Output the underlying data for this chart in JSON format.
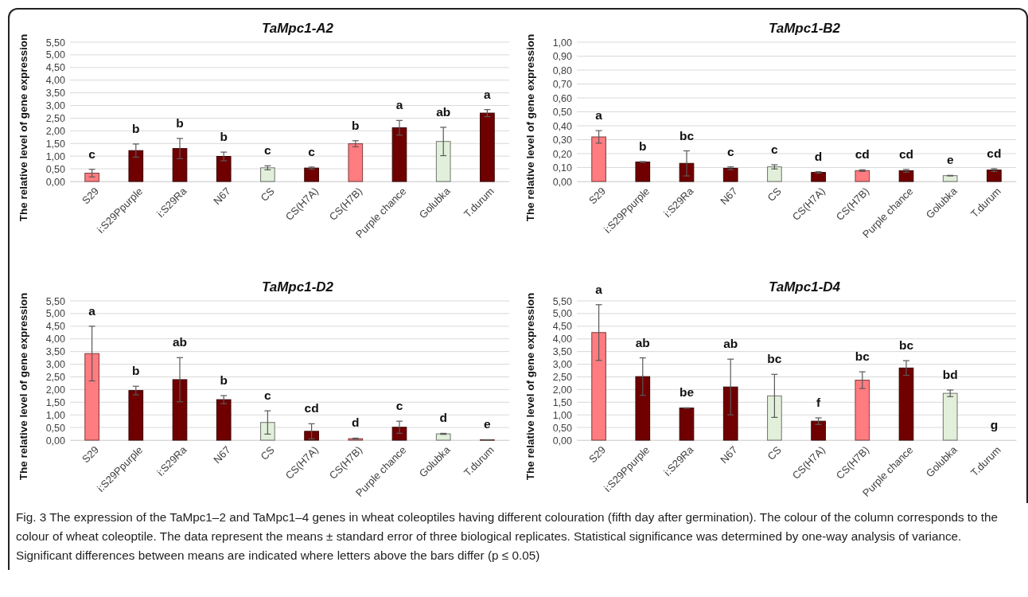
{
  "chart_data": [
    {
      "type": "bar",
      "title": "TaMpc1-A2",
      "ylabel": "The relative level of gene expression",
      "categories": [
        "S29",
        "i:S29Ppurple",
        "i:S29Ra",
        "N67",
        "CS",
        "CS(H7A)",
        "CS(H7B)",
        "Purple chance",
        "Golubka",
        "T.durum"
      ],
      "values": [
        0.33,
        1.22,
        1.3,
        0.99,
        0.54,
        0.53,
        1.49,
        2.12,
        1.58,
        2.7
      ],
      "errors": [
        0.15,
        0.26,
        0.4,
        0.17,
        0.08,
        0.04,
        0.12,
        0.29,
        0.56,
        0.14
      ],
      "value_labels": [
        "c",
        "b",
        "b",
        "b",
        "c",
        "c",
        "b",
        "a",
        "ab",
        "a"
      ],
      "colors": [
        "#ff7c80",
        "#700000",
        "#700000",
        "#700000",
        "#e2efda",
        "#700000",
        "#ff7c80",
        "#700000",
        "#e2efda",
        "#700000"
      ],
      "ylim": [
        0,
        5.5
      ],
      "yticks": [
        {
          "value": 0,
          "label": "0,00"
        },
        {
          "value": 0.5,
          "label": "0,50"
        },
        {
          "value": 1,
          "label": "1,00"
        },
        {
          "value": 1.5,
          "label": "1,50"
        },
        {
          "value": 2,
          "label": "2,00"
        },
        {
          "value": 2.5,
          "label": "2,50"
        },
        {
          "value": 3,
          "label": "3,00"
        },
        {
          "value": 3.5,
          "label": "3,50"
        },
        {
          "value": 4,
          "label": "4,00"
        },
        {
          "value": 4.5,
          "label": "4,50"
        },
        {
          "value": 5,
          "label": "5,00"
        },
        {
          "value": 5.5,
          "label": "5,50"
        }
      ],
      "grid": "y",
      "annotations": [
        "Fig. 3 The expression of the TaMpc1–2 and TaMpc1–4 genes in wheat coleoptiles having different colouration (fifth day after germination). The colour of the column corresponds to the colour of wheat coleoptile. The data represent the means ± standard error of three biological replicates. Statistical significance was determined by one-way analysis of variance. Significant differences between means are indicated where letters above the bars differ (p ≤ 0.05)"
      ]
    },
    {
      "type": "bar",
      "title": "TaMpc1-B2",
      "ylabel": "The relative level of gene expression",
      "categories": [
        "S29",
        "i:S29Ppurple",
        "i:S29Ra",
        "N67",
        "CS",
        "CS(H7A)",
        "CS(H7B)",
        "Purple chance",
        "Golubka",
        "T.durum"
      ],
      "values": [
        0.32,
        0.14,
        0.13,
        0.095,
        0.105,
        0.065,
        0.078,
        0.077,
        0.042,
        0.082
      ],
      "errors": [
        0.045,
        0.003,
        0.09,
        0.01,
        0.015,
        0.005,
        0.006,
        0.01,
        0.002,
        0.01
      ],
      "value_labels": [
        "a",
        "b",
        "bc",
        "c",
        "c",
        "d",
        "cd",
        "cd",
        "e",
        "cd"
      ],
      "colors": [
        "#ff7c80",
        "#700000",
        "#700000",
        "#700000",
        "#e2efda",
        "#700000",
        "#ff7c80",
        "#700000",
        "#e2efda",
        "#700000"
      ],
      "ylim": [
        0,
        1
      ],
      "yticks": [
        {
          "value": 0,
          "label": "0,00"
        },
        {
          "value": 0.1,
          "label": "0,10"
        },
        {
          "value": 0.2,
          "label": "0,20"
        },
        {
          "value": 0.3,
          "label": "0,30"
        },
        {
          "value": 0.4,
          "label": "0,40"
        },
        {
          "value": 0.5,
          "label": "0,50"
        },
        {
          "value": 0.6,
          "label": "0,60"
        },
        {
          "value": 0.7,
          "label": "0,70"
        },
        {
          "value": 0.8,
          "label": "0,80"
        },
        {
          "value": 0.9,
          "label": "0,90"
        },
        {
          "value": 1,
          "label": "1,00"
        }
      ],
      "grid": "y"
    },
    {
      "type": "bar",
      "title": "TaMpc1-D2",
      "ylabel": "The relative level of gene expression",
      "categories": [
        "S29",
        "i:S29Ppurple",
        "i:S29Ra",
        "N67",
        "CS",
        "CS(H7A)",
        "CS(H7B)",
        "Purple chance",
        "Golubka",
        "T.durum"
      ],
      "values": [
        3.42,
        1.96,
        2.39,
        1.6,
        0.7,
        0.35,
        0.06,
        0.51,
        0.25,
        0.01
      ],
      "errors": [
        1.08,
        0.17,
        0.87,
        0.16,
        0.46,
        0.3,
        0.02,
        0.24,
        0.02,
        0.01
      ],
      "value_labels": [
        "a",
        "b",
        "ab",
        "b",
        "c",
        "cd",
        "d",
        "c",
        "d",
        "e"
      ],
      "colors": [
        "#ff7c80",
        "#700000",
        "#700000",
        "#700000",
        "#e2efda",
        "#700000",
        "#ff7c80",
        "#700000",
        "#e2efda",
        "#700000"
      ],
      "ylim": [
        0,
        5.5
      ],
      "yticks": [
        {
          "value": 0,
          "label": "0,00"
        },
        {
          "value": 0.5,
          "label": "0,50"
        },
        {
          "value": 1,
          "label": "1,00"
        },
        {
          "value": 1.5,
          "label": "1,50"
        },
        {
          "value": 2,
          "label": "2,00"
        },
        {
          "value": 2.5,
          "label": "2,50"
        },
        {
          "value": 3,
          "label": "3,00"
        },
        {
          "value": 3.5,
          "label": "3,50"
        },
        {
          "value": 4,
          "label": "4,00"
        },
        {
          "value": 4.5,
          "label": "4,50"
        },
        {
          "value": 5,
          "label": "5,00"
        },
        {
          "value": 5.5,
          "label": "5,50"
        }
      ],
      "grid": "y"
    },
    {
      "type": "bar",
      "title": "TaMpc1-D4",
      "ylabel": "The relative level of gene expression",
      "categories": [
        "S29",
        "i:S29Ppurple",
        "i:S29Ra",
        "N67",
        "CS",
        "CS(H7A)",
        "CS(H7B)",
        "Purple chance",
        "Golubka",
        "T.durum"
      ],
      "values": [
        4.25,
        2.51,
        1.27,
        2.1,
        1.75,
        0.75,
        2.37,
        2.85,
        1.85,
        0
      ],
      "errors": [
        1.1,
        0.74,
        0.01,
        1.1,
        0.85,
        0.13,
        0.33,
        0.29,
        0.13,
        null
      ],
      "value_labels": [
        "a",
        "ab",
        "be",
        "ab",
        "bc",
        "f",
        "bc",
        "bc",
        "bd",
        "g"
      ],
      "colors": [
        "#ff7c80",
        "#700000",
        "#700000",
        "#700000",
        "#e2efda",
        "#700000",
        "#ff7c80",
        "#700000",
        "#e2efda",
        "#700000"
      ],
      "ylim": [
        0,
        5.5
      ],
      "yticks": [
        {
          "value": 0,
          "label": "0,00"
        },
        {
          "value": 0.5,
          "label": "0,50"
        },
        {
          "value": 1,
          "label": "1,00"
        },
        {
          "value": 1.5,
          "label": "1,50"
        },
        {
          "value": 2,
          "label": "2,00"
        },
        {
          "value": 2.5,
          "label": "2,50"
        },
        {
          "value": 3,
          "label": "3,00"
        },
        {
          "value": 3.5,
          "label": "3,50"
        },
        {
          "value": 4,
          "label": "4,00"
        },
        {
          "value": 4.5,
          "label": "4,50"
        },
        {
          "value": 5,
          "label": "5,00"
        },
        {
          "value": 5.5,
          "label": "5,50"
        }
      ],
      "grid": "y"
    }
  ]
}
